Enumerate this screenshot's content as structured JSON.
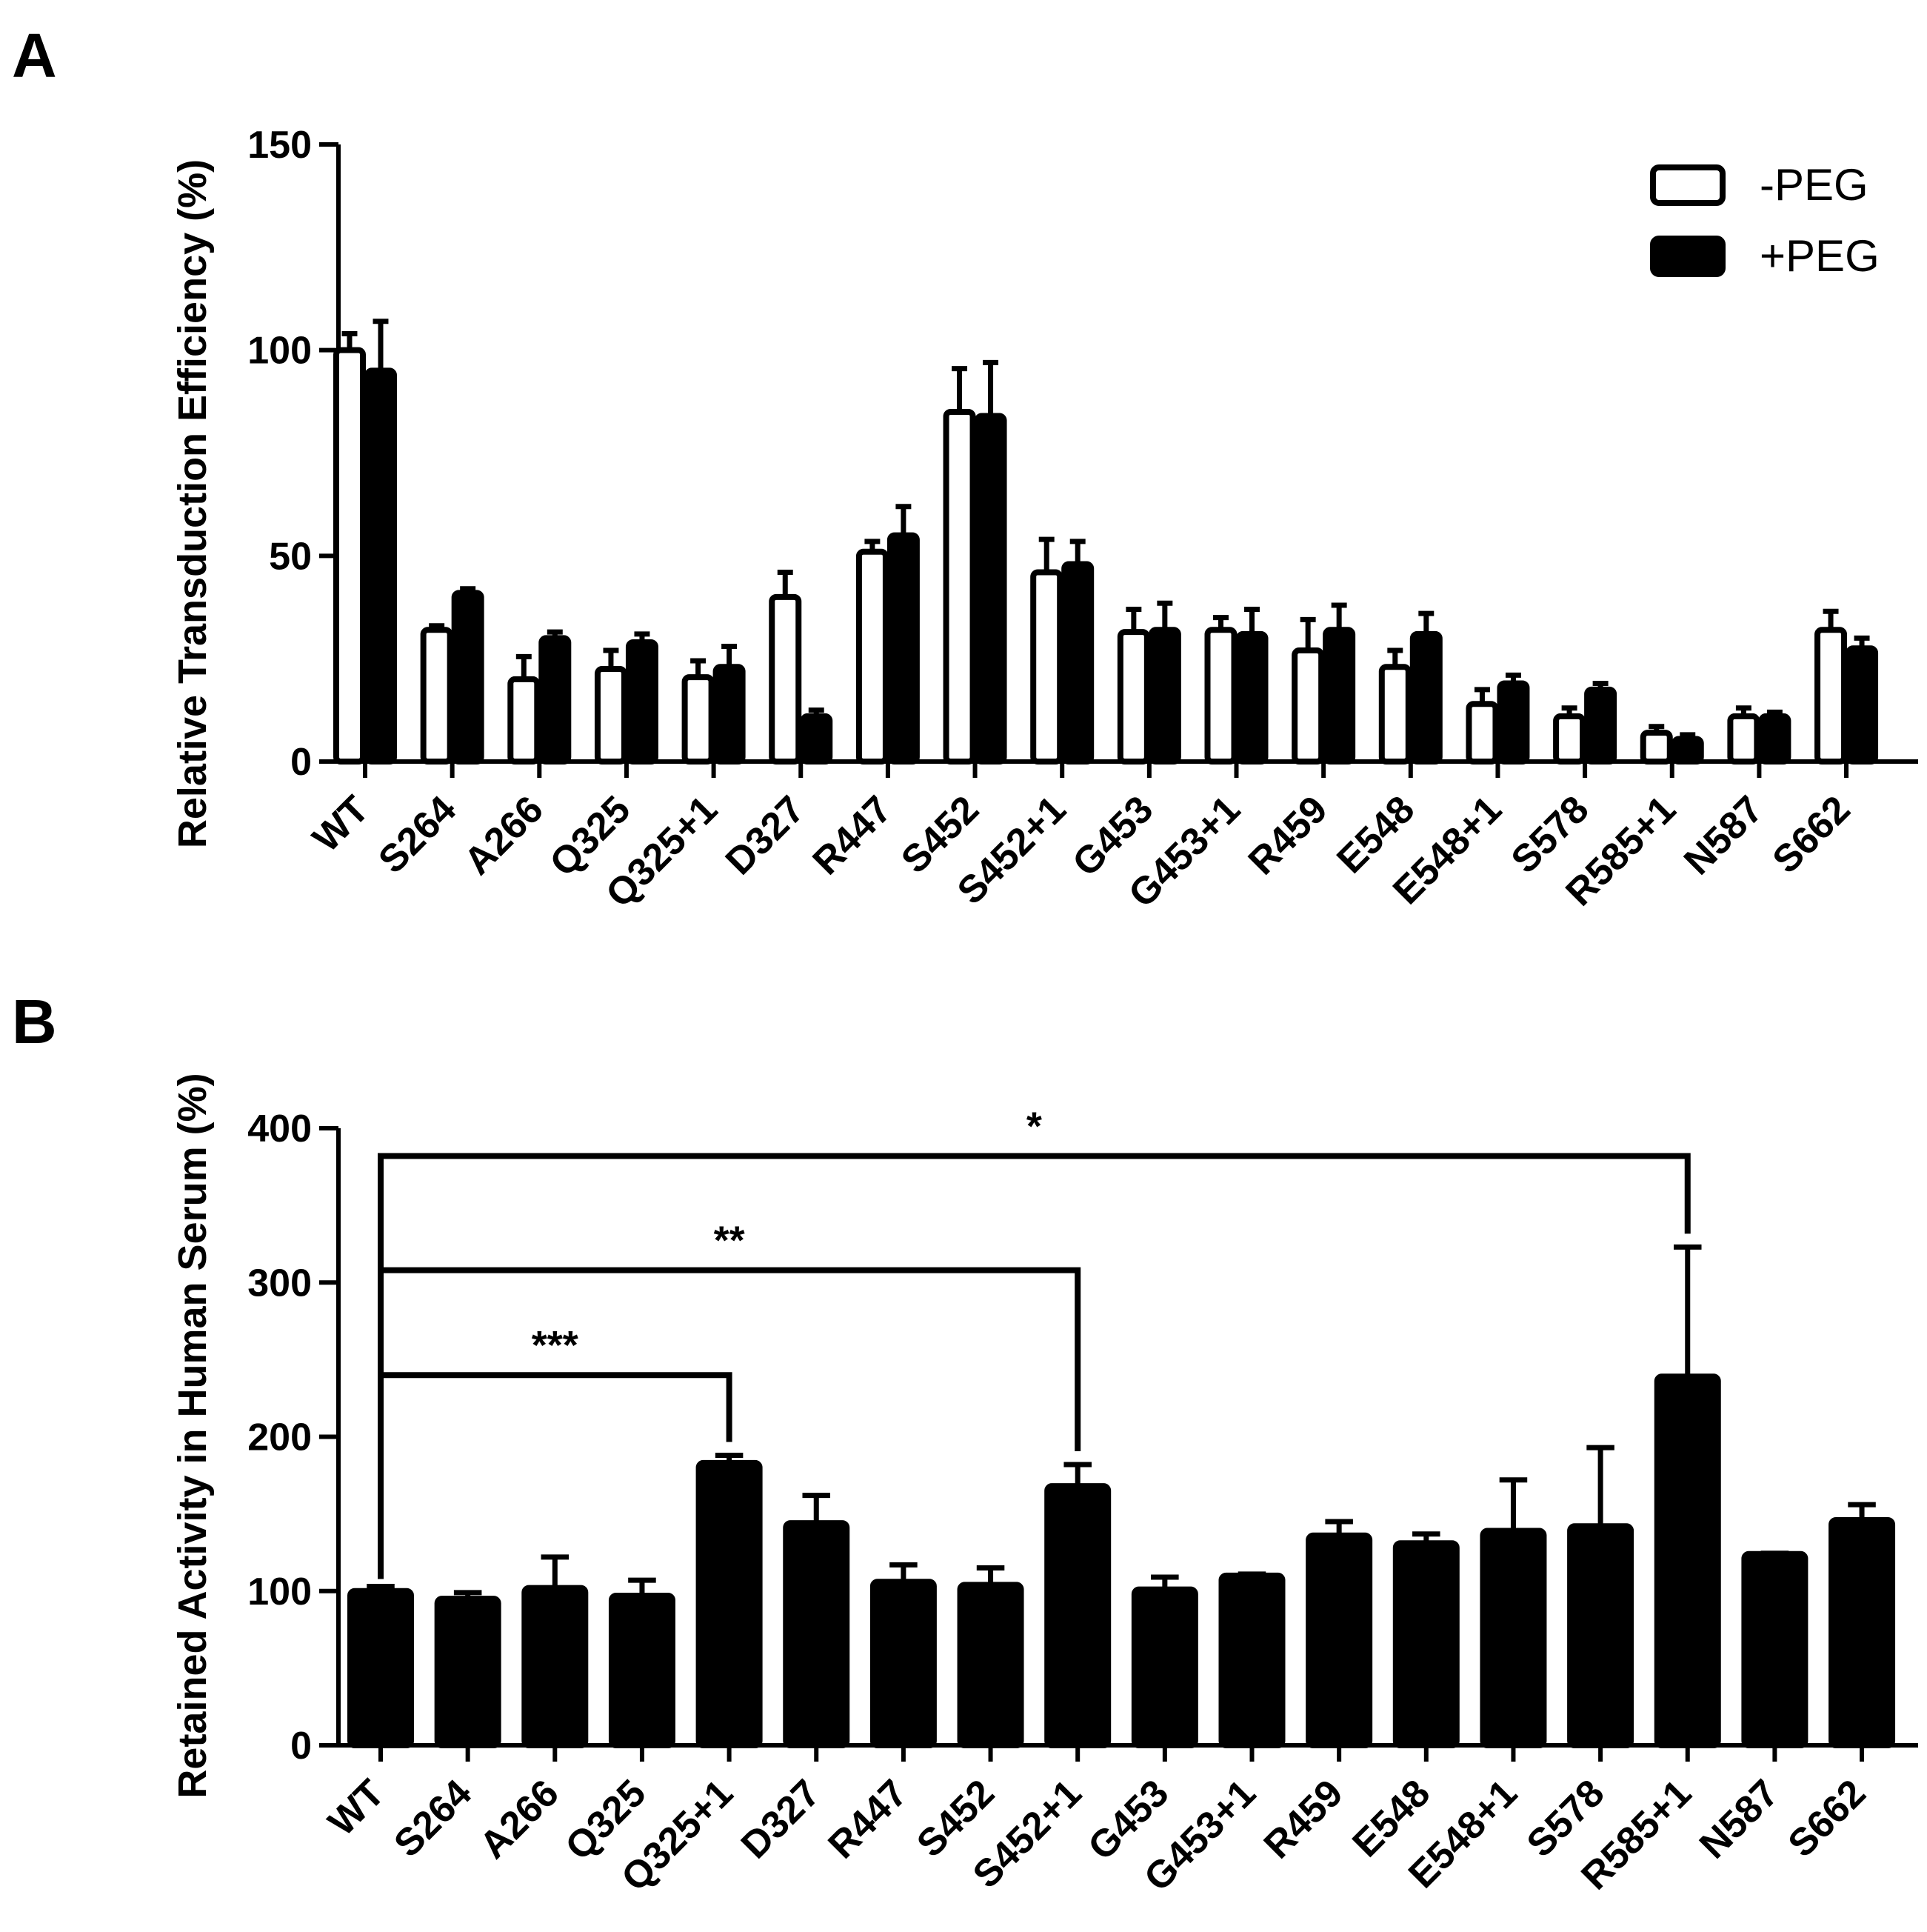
{
  "colors": {
    "ink": "#000000",
    "paper": "#ffffff"
  },
  "chart_data": [
    {
      "panel": "A",
      "type": "bar",
      "ylabel": "Relative Transduction Efficiency (%)",
      "xlabel": "",
      "ylim": [
        0,
        150
      ],
      "yticks": [
        0,
        50,
        100,
        150
      ],
      "ytick_labels": [
        "0",
        "50",
        "100",
        "150"
      ],
      "legend_position": "top-right",
      "categories": [
        "WT",
        "S264",
        "A266",
        "Q325",
        "Q325+1",
        "D327",
        "R447",
        "S452",
        "S452+1",
        "G453",
        "G453+1",
        "R459",
        "E548",
        "E548+1",
        "S578",
        "R585+1",
        "N587",
        "S662"
      ],
      "series": [
        {
          "name": "-PEG",
          "fill": "#ffffff",
          "values": [
            100,
            32,
            20,
            22.5,
            20.5,
            40,
            51,
            85,
            46,
            31.5,
            32,
            27,
            23,
            14,
            11,
            7,
            11,
            32
          ],
          "errors": [
            4,
            1,
            5.5,
            4.5,
            4,
            6,
            2.5,
            10.5,
            8,
            5.5,
            3,
            7.5,
            4,
            3.5,
            2,
            1.5,
            2,
            4.5
          ]
        },
        {
          "name": "+PEG",
          "fill": "#000000",
          "values": [
            95,
            41,
            30,
            29,
            23,
            11,
            55,
            84,
            48,
            32,
            31,
            32,
            31,
            19,
            17.5,
            5.5,
            11,
            27.5
          ],
          "errors": [
            12,
            1,
            1.5,
            2,
            5,
            1.5,
            7,
            13,
            5.5,
            6.5,
            6,
            6,
            5,
            2,
            1.5,
            1,
            1,
            2.5
          ]
        }
      ]
    },
    {
      "panel": "B",
      "type": "bar",
      "ylabel": "Retained Activity in Human Serum (%)",
      "xlabel": "",
      "ylim": [
        0,
        400
      ],
      "yticks": [
        0,
        100,
        200,
        300,
        400
      ],
      "ytick_labels": [
        "0",
        "100",
        "200",
        "300",
        "400"
      ],
      "categories": [
        "WT",
        "S264",
        "A266",
        "Q325",
        "Q325+1",
        "D327",
        "R447",
        "S452",
        "S452+1",
        "G453",
        "G453+1",
        "R459",
        "E548",
        "E548+1",
        "S578",
        "R585+1",
        "N587",
        "S662"
      ],
      "series": [
        {
          "name": "Retained activity",
          "fill": "#000000",
          "values": [
            100,
            95,
            102,
            97,
            183,
            144,
            106,
            104,
            168,
            101,
            110,
            136,
            131,
            139,
            142,
            239,
            124,
            146
          ],
          "errors": [
            3,
            4,
            20,
            10,
            5,
            18,
            11,
            11,
            14,
            8,
            1,
            9,
            6,
            33,
            51,
            84,
            0.5,
            10
          ]
        }
      ],
      "significance": [
        {
          "from": "WT",
          "to": "Q325+1",
          "label": "***",
          "level": 240
        },
        {
          "from": "WT",
          "to": "S452+1",
          "label": "**",
          "level": 308
        },
        {
          "from": "WT",
          "to": "R585+1",
          "label": "*",
          "level": 382
        }
      ]
    }
  ]
}
